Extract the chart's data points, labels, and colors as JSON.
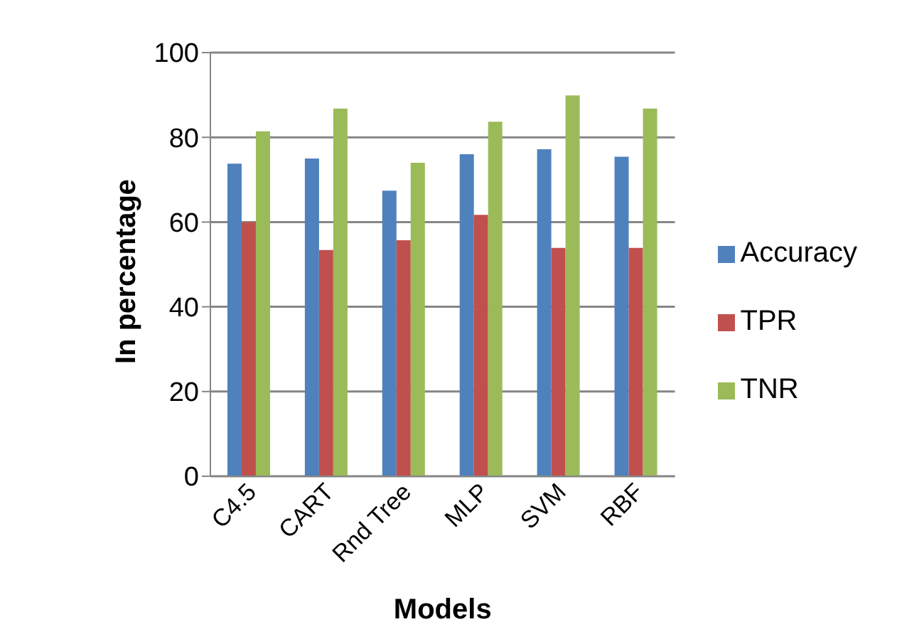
{
  "chart_data": {
    "type": "bar",
    "xlabel": "Models",
    "ylabel": "In percentage",
    "categories": [
      "C4.5",
      "CART",
      "Rnd Tree",
      "MLP",
      "SVM",
      "RBF"
    ],
    "series": [
      {
        "name": "Accuracy",
        "color": "#4f81bd",
        "values": [
          73.8,
          75,
          67.4,
          76,
          77.2,
          75.4
        ]
      },
      {
        "name": "TPR",
        "color": "#c0504d",
        "values": [
          60,
          53.4,
          55.7,
          61.7,
          53.9,
          53.9
        ]
      },
      {
        "name": "TNR",
        "color": "#9bbb59",
        "values": [
          81.4,
          86.8,
          74,
          83.7,
          89.9,
          86.8
        ]
      }
    ],
    "ylim": [
      0,
      100
    ],
    "yticks": [
      0,
      20,
      40,
      60,
      80,
      100
    ],
    "grid": "y",
    "legend": "right"
  }
}
